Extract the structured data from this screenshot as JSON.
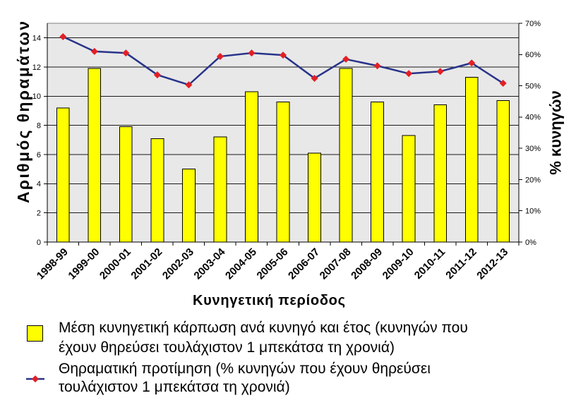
{
  "chart_data": {
    "type": "bar",
    "categories": [
      "1998-99",
      "1999-00",
      "2000-01",
      "2001-02",
      "2002-03",
      "2003-04",
      "2004-05",
      "2005-06",
      "2006-07",
      "2007-08",
      "2008-09",
      "2009-10",
      "2010-11",
      "2011-12",
      "2012-13"
    ],
    "series": [
      {
        "name": "Μέση κυνηγετική κάρπωση ανά κυνηγό και έτος (κυνηγών που έχουν θηρεύσει τουλάχιστον 1 μπεκάτσα τη χρονιά)",
        "type": "bar",
        "axis": "left",
        "color": "#FFFF00",
        "values": [
          9.2,
          11.9,
          7.9,
          7.1,
          5.0,
          7.2,
          10.3,
          9.6,
          6.1,
          11.9,
          9.6,
          7.3,
          9.4,
          11.3,
          9.7
        ]
      },
      {
        "name": "Θηραματική προτίμηση (% κυνηγών που έχουν θηρεύσει τουλάχιστον 1 μπεκάτσα τη χρονιά)",
        "type": "line",
        "axis": "right",
        "color": "#28338A",
        "marker": "diamond",
        "marker_color": "#E31F26",
        "values": [
          65.7,
          61.0,
          60.5,
          53.5,
          50.3,
          59.4,
          60.5,
          59.8,
          52.4,
          58.5,
          56.4,
          53.9,
          54.6,
          57.3,
          50.8
        ]
      }
    ],
    "xlabel": "Κυνηγετική περίοδος",
    "ylabel": "Αριθμός θηραμάτων",
    "y2label": "% κυνηγών",
    "ylim": [
      0,
      15
    ],
    "yticks": [
      0,
      2,
      4,
      6,
      8,
      10,
      12,
      14
    ],
    "y2lim": [
      0,
      70
    ],
    "y2ticks": [
      "0%",
      "10%",
      "20%",
      "30%",
      "40%",
      "50%",
      "60%",
      "70%"
    ],
    "grid": true,
    "legend_position": "bottom",
    "plot_background": "#E8E8E8"
  }
}
